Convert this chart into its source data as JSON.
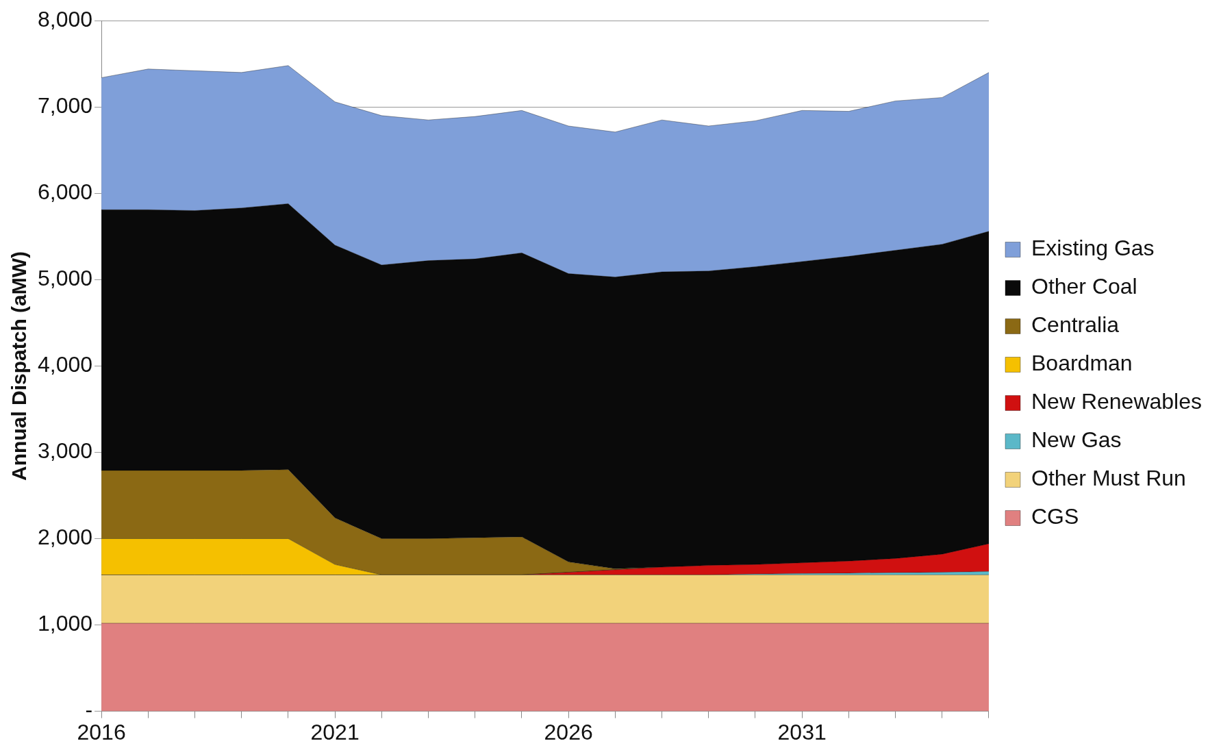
{
  "chart_data": {
    "type": "area",
    "stacked": true,
    "ylabel": "Annual Dispatch (aMW)",
    "categories": [
      "2016",
      null,
      null,
      null,
      null,
      "2021",
      null,
      null,
      null,
      null,
      "2026",
      null,
      null,
      null,
      null,
      "2031",
      null,
      null,
      null,
      null
    ],
    "ylim": [
      0,
      8000
    ],
    "yticks": [
      {
        "value": 0,
        "label": "-"
      },
      {
        "value": 1000,
        "label": "1,000"
      },
      {
        "value": 2000,
        "label": "2,000"
      },
      {
        "value": 3000,
        "label": "3,000"
      },
      {
        "value": 4000,
        "label": "4,000"
      },
      {
        "value": 5000,
        "label": "5,000"
      },
      {
        "value": 6000,
        "label": "6,000"
      },
      {
        "value": 7000,
        "label": "7,000"
      },
      {
        "value": 8000,
        "label": "8,000"
      }
    ],
    "grid": "y",
    "legend": "right",
    "series": [
      {
        "name": "CGS",
        "color": "#e08080",
        "values": [
          1020,
          1020,
          1020,
          1020,
          1020,
          1020,
          1020,
          1020,
          1020,
          1020,
          1020,
          1020,
          1020,
          1020,
          1020,
          1020,
          1020,
          1020,
          1020,
          1020
        ]
      },
      {
        "name": "Other Must Run",
        "color": "#f2d27a",
        "values": [
          560,
          560,
          560,
          560,
          560,
          560,
          560,
          560,
          560,
          560,
          560,
          560,
          560,
          560,
          560,
          560,
          560,
          560,
          560,
          560
        ]
      },
      {
        "name": "New Gas",
        "color": "#5bb8c8",
        "values": [
          0,
          0,
          0,
          0,
          0,
          0,
          0,
          0,
          0,
          0,
          0,
          0,
          0,
          0,
          10,
          15,
          20,
          25,
          30,
          40
        ]
      },
      {
        "name": "New Renewables",
        "color": "#d01010",
        "values": [
          0,
          0,
          0,
          0,
          0,
          0,
          0,
          0,
          0,
          0,
          30,
          60,
          90,
          110,
          110,
          125,
          140,
          165,
          210,
          320
        ]
      },
      {
        "name": "Boardman",
        "color": "#f5c000",
        "values": [
          420,
          420,
          420,
          420,
          420,
          120,
          0,
          0,
          0,
          0,
          0,
          0,
          0,
          0,
          0,
          0,
          0,
          0,
          0,
          0
        ]
      },
      {
        "name": "Centralia",
        "color": "#8b6914",
        "values": [
          790,
          790,
          790,
          790,
          800,
          540,
          420,
          420,
          430,
          440,
          120,
          10,
          0,
          0,
          0,
          0,
          0,
          0,
          0,
          0
        ]
      },
      {
        "name": "Other Coal",
        "color": "#0a0a0a",
        "values": [
          3020,
          3020,
          3010,
          3040,
          3080,
          3160,
          3170,
          3220,
          3230,
          3290,
          3340,
          3380,
          3420,
          3410,
          3450,
          3490,
          3530,
          3570,
          3590,
          3620
        ]
      },
      {
        "name": "Existing Gas",
        "color": "#7f9fd9",
        "values": [
          1530,
          1630,
          1620,
          1570,
          1600,
          1660,
          1730,
          1630,
          1650,
          1650,
          1710,
          1680,
          1760,
          1680,
          1690,
          1750,
          1680,
          1730,
          1700,
          1840
        ]
      }
    ]
  }
}
